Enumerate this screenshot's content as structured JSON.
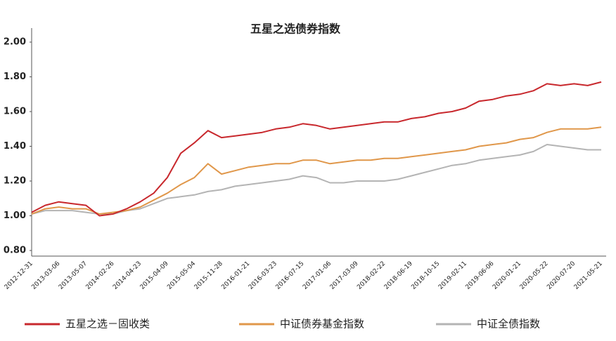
{
  "chart_data": {
    "type": "line",
    "title": "五星之选债券指数",
    "categories": [
      "2012-12-31",
      null,
      "2013-03-06",
      null,
      "2013-05-07",
      null,
      "2014-02-26",
      null,
      "2014-04-23",
      null,
      "2015-04-09",
      null,
      "2015-05-04",
      null,
      "2015-11-28",
      null,
      "2016-01-21",
      null,
      "2016-03-23",
      null,
      "2016-07-15",
      null,
      "2017-01-06",
      null,
      "2017-03-09",
      null,
      "2018-02-22",
      null,
      "2018-06-19",
      null,
      "2018-10-15",
      null,
      "2019-02-11",
      null,
      "2019-06-06",
      null,
      "2020-01-21",
      null,
      "2020-05-22",
      null,
      "2020-07-20",
      null,
      "2021-05-21"
    ],
    "series": [
      {
        "name": "五星之选－固收类",
        "color": "#c8282d",
        "values": [
          1.02,
          1.06,
          1.08,
          1.07,
          1.06,
          1.0,
          1.01,
          1.04,
          1.08,
          1.13,
          1.22,
          1.36,
          1.42,
          1.49,
          1.45,
          1.46,
          1.47,
          1.48,
          1.5,
          1.51,
          1.53,
          1.52,
          1.5,
          1.51,
          1.52,
          1.53,
          1.54,
          1.54,
          1.56,
          1.57,
          1.59,
          1.6,
          1.62,
          1.66,
          1.67,
          1.69,
          1.7,
          1.72,
          1.76,
          1.75,
          1.76,
          1.75,
          1.77
        ]
      },
      {
        "name": "中证债券基金指数",
        "color": "#e0974a",
        "values": [
          1.01,
          1.04,
          1.05,
          1.04,
          1.04,
          1.01,
          1.02,
          1.03,
          1.05,
          1.09,
          1.13,
          1.18,
          1.22,
          1.3,
          1.24,
          1.26,
          1.28,
          1.29,
          1.3,
          1.3,
          1.32,
          1.32,
          1.3,
          1.31,
          1.32,
          1.32,
          1.33,
          1.33,
          1.34,
          1.35,
          1.36,
          1.37,
          1.38,
          1.4,
          1.41,
          1.42,
          1.44,
          1.45,
          1.48,
          1.5,
          1.5,
          1.5,
          1.51
        ]
      },
      {
        "name": "中证全债指数",
        "color": "#b4b4b4",
        "values": [
          1.01,
          1.03,
          1.03,
          1.03,
          1.02,
          1.01,
          1.01,
          1.03,
          1.04,
          1.07,
          1.1,
          1.11,
          1.12,
          1.14,
          1.15,
          1.17,
          1.18,
          1.19,
          1.2,
          1.21,
          1.23,
          1.22,
          1.19,
          1.19,
          1.2,
          1.2,
          1.2,
          1.21,
          1.23,
          1.25,
          1.27,
          1.29,
          1.3,
          1.32,
          1.33,
          1.34,
          1.35,
          1.37,
          1.41,
          1.4,
          1.39,
          1.38,
          1.38
        ]
      }
    ],
    "ylim": [
      0.8,
      2.0
    ],
    "yticks": [
      {
        "value": 0.8,
        "label": "0.80"
      },
      {
        "value": 1.0,
        "label": "1.00"
      },
      {
        "value": 1.2,
        "label": "1.20"
      },
      {
        "value": 1.4,
        "label": "1.40"
      },
      {
        "value": 1.6,
        "label": "1.60"
      },
      {
        "value": 1.8,
        "label": "1.80"
      },
      {
        "value": 2.0,
        "label": "2.00"
      }
    ],
    "grid": false
  }
}
